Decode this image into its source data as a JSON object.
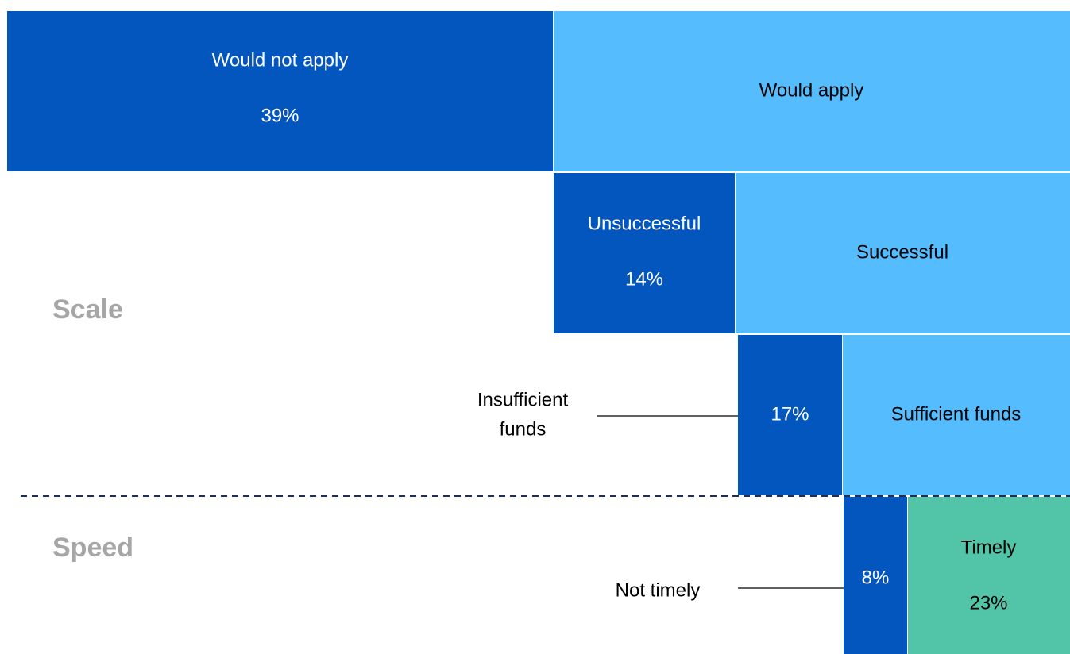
{
  "chart_data": {
    "type": "table",
    "colors": {
      "dark": "#0356bd",
      "light": "#55bdfd",
      "green": "#52c4a8",
      "side_label": "#a6a6a6",
      "divider": "#1f2d5a"
    },
    "side_labels": [
      "Scale",
      "Speed"
    ],
    "rows": [
      {
        "dark": {
          "label": "Would not apply",
          "value": "39%"
        },
        "light": {
          "label": "Would apply",
          "value": ""
        }
      },
      {
        "dark": {
          "label": "Unsuccessful",
          "value": "14%"
        },
        "light": {
          "label": "Successful",
          "value": ""
        }
      },
      {
        "dark": {
          "label": "",
          "value": "17%"
        },
        "light": {
          "label": "Sufficient funds",
          "value": ""
        },
        "callout": [
          "Insufficient",
          "funds"
        ]
      },
      {
        "dark": {
          "label": "",
          "value": "8%"
        },
        "light": {
          "label": "Timely",
          "value": "23%"
        },
        "callout": [
          "Not timely"
        ]
      }
    ],
    "values_percent": {
      "would_not_apply": 39,
      "unsuccessful": 14,
      "insufficient_funds": 17,
      "not_timely": 8,
      "timely": 23
    }
  }
}
